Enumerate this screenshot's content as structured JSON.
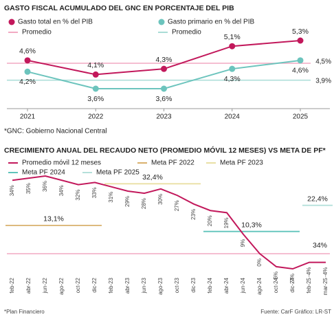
{
  "chart_data": [
    {
      "type": "line",
      "title": "GASTO FISCAL ACUMULADO DEL GNC EN PORCENTAJE DEL PIB",
      "categories": [
        "2021",
        "2022",
        "2023",
        "2024",
        "2025"
      ],
      "series": [
        {
          "name": "Gasto total en % del PIB",
          "color": "#c2185b",
          "values": [
            4.6,
            4.1,
            4.3,
            5.1,
            5.3
          ],
          "value_labels": [
            "4,6%",
            "4,1%",
            "4,3%",
            "5,1%",
            "5,3%"
          ]
        },
        {
          "name": "Gasto primario en % del PIB",
          "color": "#6cc4bd",
          "values": [
            4.2,
            3.6,
            3.6,
            4.3,
            4.6
          ],
          "value_labels": [
            "4,2%",
            "3,6%",
            "3,6%",
            "4,3%",
            "4,6%"
          ]
        }
      ],
      "reference_lines": [
        {
          "name": "Promedio",
          "color": "#f2a9c2",
          "value": 4.5,
          "value_label": "4,5%"
        },
        {
          "name": "Promedio",
          "color": "#a9dcd6",
          "value": 3.9,
          "value_label": "3,9%"
        }
      ],
      "note": "*GNC: Gobierno Nacional Central"
    },
    {
      "type": "line",
      "title": "CRECIMIENTO ANUAL DEL RECAUDO NETO (PROMEDIO MÓVIL 12 MESES) VS META DE PF*",
      "categories": [
        "feb-22",
        "abr-22",
        "jun-22",
        "ago-22",
        "oct-22",
        "dic-22",
        "feb-23",
        "abr-23",
        "jun-23",
        "ago-23",
        "oct-23",
        "dic-23",
        "feb-24",
        "abr-24",
        "jun-24",
        "ago-24",
        "oct-24",
        "dic-24",
        "feb-25",
        "mar-25"
      ],
      "series": [
        {
          "name": "Promedio móvil 12 meses",
          "color": "#c2185b",
          "values": [
            34,
            35,
            36,
            34,
            32,
            33,
            31,
            29,
            28,
            30,
            27,
            23,
            20,
            19,
            9,
            0,
            -6,
            -7,
            -4,
            -4
          ],
          "value_labels": [
            "34%",
            "35%",
            "36%",
            "34%",
            "32%",
            "33%",
            "31%",
            "29%",
            "28%",
            "30%",
            "27%",
            "23%",
            "20%",
            "19%",
            "9%",
            "0%",
            "-6%",
            "-7%",
            "-4%",
            "-4%"
          ]
        }
      ],
      "targets": [
        {
          "name": "Meta PF 2022",
          "color": "#d9b06c",
          "value": 13.1,
          "value_label": "13,1%"
        },
        {
          "name": "Meta PF 2023",
          "color": "#e9e0a4",
          "value": 32.4,
          "value_label": "32,4%"
        },
        {
          "name": "Meta PF 2024",
          "color": "#5fc3bb",
          "value": 10.3,
          "value_label": "10,3%"
        },
        {
          "name": "Meta PF 2025",
          "color": "#b4e0da",
          "value": 22.4,
          "value_label": "22,4%"
        }
      ],
      "annotation": "34%",
      "note": "*Plan Financiero",
      "source": "Fuente: CarF Gráfico: LR-ST"
    }
  ]
}
